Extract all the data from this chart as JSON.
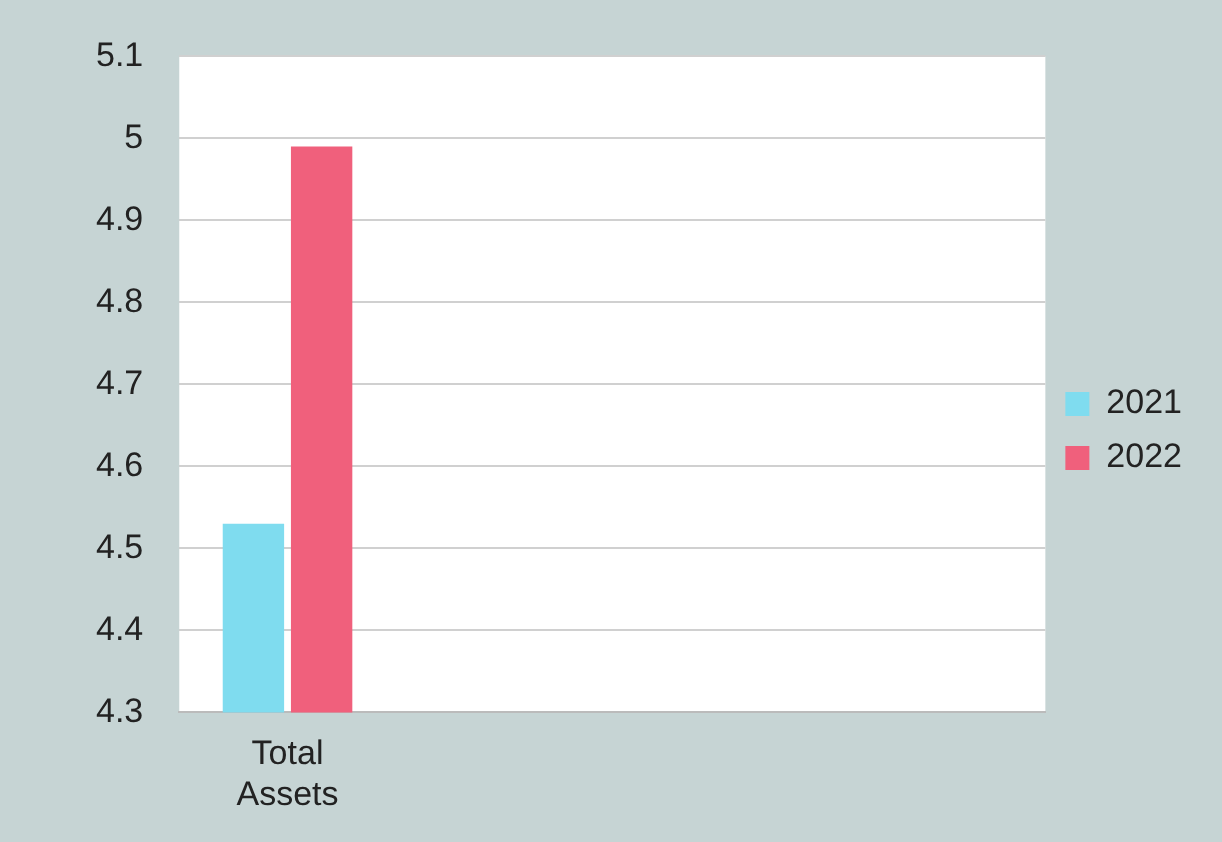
{
  "chart_data": {
    "type": "bar",
    "categories": [
      "Total Assets",
      null,
      null,
      null
    ],
    "series": [
      {
        "name": "2021",
        "color": "#7fdcef",
        "values": [
          4.53,
          null,
          null,
          null
        ]
      },
      {
        "name": "2022",
        "color": "#f0607c",
        "values": [
          4.99,
          null,
          null,
          null
        ]
      }
    ],
    "ylim": [
      4.3,
      5.1
    ],
    "yticks": [
      4.3,
      4.4,
      4.5,
      4.6,
      4.7,
      4.8,
      4.9,
      5,
      5.1
    ],
    "grid": "y",
    "legend": "right"
  }
}
